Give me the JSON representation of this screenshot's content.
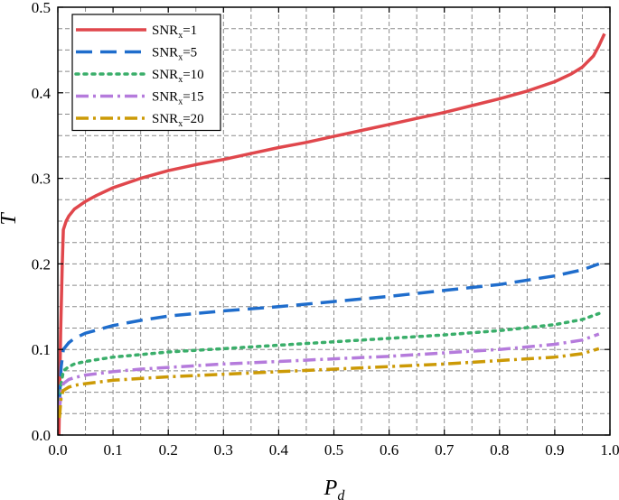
{
  "chart_data": {
    "type": "line",
    "title": "",
    "xlabel": "P",
    "xlabel_sub": "d",
    "ylabel": "T",
    "xlim": [
      0,
      1.0
    ],
    "ylim": [
      0,
      0.5
    ],
    "xticks": [
      "0.0",
      "0.1",
      "0.2",
      "0.3",
      "0.4",
      "0.5",
      "0.6",
      "0.7",
      "0.8",
      "0.9",
      "1.0"
    ],
    "yticks": [
      "0.0",
      "0.1",
      "0.2",
      "0.3",
      "0.4",
      "0.5"
    ],
    "grid": true,
    "legend_position": "top-left",
    "series": [
      {
        "name": "SNR",
        "name_sub": "x",
        "name_suffix": "=1",
        "color": "#e0474c",
        "style": "solid",
        "x": [
          0.002,
          0.005,
          0.008,
          0.01,
          0.015,
          0.02,
          0.03,
          0.05,
          0.07,
          0.1,
          0.15,
          0.2,
          0.25,
          0.3,
          0.35,
          0.4,
          0.45,
          0.5,
          0.55,
          0.6,
          0.65,
          0.7,
          0.75,
          0.8,
          0.85,
          0.9,
          0.93,
          0.95,
          0.97,
          0.98,
          0.99
        ],
        "y": [
          0.0,
          0.12,
          0.2,
          0.24,
          0.25,
          0.256,
          0.264,
          0.273,
          0.28,
          0.289,
          0.3,
          0.309,
          0.316,
          0.322,
          0.329,
          0.336,
          0.342,
          0.349,
          0.356,
          0.363,
          0.37,
          0.377,
          0.385,
          0.393,
          0.402,
          0.413,
          0.422,
          0.43,
          0.443,
          0.455,
          0.469
        ]
      },
      {
        "name": "SNR",
        "name_sub": "x",
        "name_suffix": "=5",
        "color": "#1f6dcc",
        "style": "dash",
        "x": [
          0.003,
          0.006,
          0.01,
          0.02,
          0.03,
          0.05,
          0.1,
          0.15,
          0.2,
          0.3,
          0.4,
          0.5,
          0.6,
          0.7,
          0.8,
          0.9,
          0.95,
          0.98
        ],
        "y": [
          0.04,
          0.08,
          0.1,
          0.108,
          0.113,
          0.119,
          0.128,
          0.134,
          0.139,
          0.145,
          0.15,
          0.156,
          0.162,
          0.169,
          0.176,
          0.186,
          0.193,
          0.2
        ]
      },
      {
        "name": "SNR",
        "name_sub": "x",
        "name_suffix": "=10",
        "color": "#3aae6a",
        "style": "dot",
        "x": [
          0.003,
          0.006,
          0.01,
          0.02,
          0.03,
          0.05,
          0.1,
          0.15,
          0.2,
          0.3,
          0.4,
          0.5,
          0.6,
          0.7,
          0.8,
          0.9,
          0.95,
          0.98
        ],
        "y": [
          0.03,
          0.06,
          0.075,
          0.08,
          0.083,
          0.086,
          0.091,
          0.094,
          0.097,
          0.101,
          0.105,
          0.109,
          0.113,
          0.117,
          0.122,
          0.129,
          0.135,
          0.142
        ]
      },
      {
        "name": "SNR",
        "name_sub": "x",
        "name_suffix": "=15",
        "color": "#b57bdc",
        "style": "dashdot",
        "x": [
          0.003,
          0.006,
          0.01,
          0.02,
          0.03,
          0.05,
          0.1,
          0.15,
          0.2,
          0.3,
          0.4,
          0.5,
          0.6,
          0.7,
          0.8,
          0.9,
          0.95,
          0.98
        ],
        "y": [
          0.03,
          0.05,
          0.06,
          0.065,
          0.067,
          0.07,
          0.074,
          0.077,
          0.079,
          0.083,
          0.086,
          0.089,
          0.092,
          0.096,
          0.1,
          0.106,
          0.111,
          0.118
        ]
      },
      {
        "name": "SNR",
        "name_sub": "x",
        "name_suffix": "=20",
        "color": "#cc9a06",
        "style": "dashdot",
        "x": [
          0.003,
          0.006,
          0.01,
          0.02,
          0.03,
          0.05,
          0.1,
          0.15,
          0.2,
          0.3,
          0.4,
          0.5,
          0.6,
          0.7,
          0.8,
          0.9,
          0.95,
          0.98
        ],
        "y": [
          0.02,
          0.045,
          0.052,
          0.056,
          0.058,
          0.06,
          0.064,
          0.066,
          0.068,
          0.071,
          0.074,
          0.077,
          0.08,
          0.083,
          0.087,
          0.091,
          0.095,
          0.101
        ]
      }
    ]
  }
}
